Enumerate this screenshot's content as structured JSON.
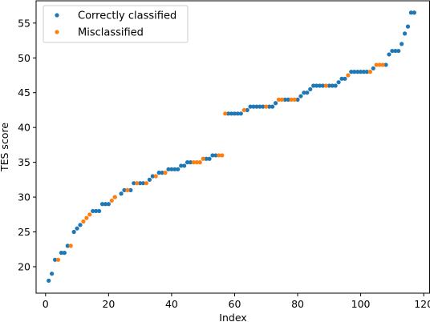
{
  "chart_data": {
    "type": "scatter",
    "title": "",
    "xlabel": "Index",
    "ylabel": "TES score",
    "xlim": [
      -3,
      122
    ],
    "ylim": [
      16.2,
      58.2
    ],
    "xticks": [
      0,
      20,
      40,
      60,
      80,
      100,
      120
    ],
    "yticks": [
      20,
      25,
      30,
      35,
      40,
      45,
      50,
      55
    ],
    "grid": false,
    "legend": {
      "placement": "top-left"
    },
    "series": [
      {
        "name": "Correctly classified",
        "color": "#1f77b4",
        "points": [
          [
            1,
            18
          ],
          [
            2,
            19
          ],
          [
            3,
            21
          ],
          [
            5,
            22
          ],
          [
            6,
            22
          ],
          [
            7,
            23
          ],
          [
            9,
            25
          ],
          [
            10,
            25.5
          ],
          [
            11,
            26
          ],
          [
            15,
            28
          ],
          [
            16,
            28
          ],
          [
            17,
            28
          ],
          [
            18,
            29
          ],
          [
            19,
            29
          ],
          [
            20,
            29
          ],
          [
            22,
            30
          ],
          [
            24,
            30.5
          ],
          [
            25,
            31
          ],
          [
            27,
            31
          ],
          [
            28,
            32
          ],
          [
            30,
            32
          ],
          [
            31,
            32
          ],
          [
            33,
            32.5
          ],
          [
            34,
            33
          ],
          [
            36,
            33.5
          ],
          [
            37,
            33.5
          ],
          [
            39,
            34
          ],
          [
            40,
            34
          ],
          [
            41,
            34
          ],
          [
            42,
            34
          ],
          [
            43,
            34.5
          ],
          [
            44,
            34.5
          ],
          [
            45,
            35
          ],
          [
            46,
            35
          ],
          [
            51,
            35.5
          ],
          [
            52,
            35.5
          ],
          [
            53,
            36
          ],
          [
            54,
            36
          ],
          [
            58,
            42
          ],
          [
            59,
            42
          ],
          [
            60,
            42
          ],
          [
            61,
            42
          ],
          [
            62,
            42
          ],
          [
            64,
            42.5
          ],
          [
            65,
            43
          ],
          [
            66,
            43
          ],
          [
            67,
            43
          ],
          [
            68,
            43
          ],
          [
            69,
            43
          ],
          [
            71,
            43
          ],
          [
            72,
            43
          ],
          [
            73,
            43.5
          ],
          [
            76,
            44
          ],
          [
            77,
            44
          ],
          [
            80,
            44
          ],
          [
            81,
            44.5
          ],
          [
            82,
            45
          ],
          [
            83,
            45
          ],
          [
            84,
            45.5
          ],
          [
            85,
            46
          ],
          [
            86,
            46
          ],
          [
            87,
            46
          ],
          [
            88,
            46
          ],
          [
            90,
            46
          ],
          [
            91,
            46
          ],
          [
            92,
            46
          ],
          [
            93,
            46.5
          ],
          [
            94,
            47
          ],
          [
            95,
            47
          ],
          [
            97,
            48
          ],
          [
            98,
            48
          ],
          [
            99,
            48
          ],
          [
            100,
            48
          ],
          [
            101,
            48
          ],
          [
            102,
            48
          ],
          [
            104,
            48.5
          ],
          [
            108,
            49
          ],
          [
            109,
            50.5
          ],
          [
            110,
            51
          ],
          [
            111,
            51
          ],
          [
            112,
            51
          ],
          [
            113,
            52
          ],
          [
            114,
            53.5
          ],
          [
            115,
            54.5
          ],
          [
            116,
            56.5
          ],
          [
            117,
            56.5
          ]
        ]
      },
      {
        "name": "Misclassified",
        "color": "#ff7f0e",
        "points": [
          [
            4,
            21
          ],
          [
            8,
            23
          ],
          [
            12,
            26.5
          ],
          [
            13,
            27
          ],
          [
            14,
            27.5
          ],
          [
            21,
            29.5
          ],
          [
            22,
            30
          ],
          [
            26,
            31
          ],
          [
            29,
            32
          ],
          [
            32,
            32
          ],
          [
            35,
            33
          ],
          [
            38,
            33.5
          ],
          [
            47,
            35
          ],
          [
            48,
            35
          ],
          [
            49,
            35
          ],
          [
            50,
            35.5
          ],
          [
            55,
            36
          ],
          [
            56,
            36
          ],
          [
            57,
            42
          ],
          [
            63,
            42.5
          ],
          [
            70,
            43
          ],
          [
            74,
            44
          ],
          [
            75,
            44
          ],
          [
            78,
            44
          ],
          [
            79,
            44
          ],
          [
            89,
            46
          ],
          [
            96,
            47.5
          ],
          [
            103,
            48
          ],
          [
            105,
            49
          ],
          [
            106,
            49
          ],
          [
            107,
            49
          ]
        ]
      }
    ]
  }
}
